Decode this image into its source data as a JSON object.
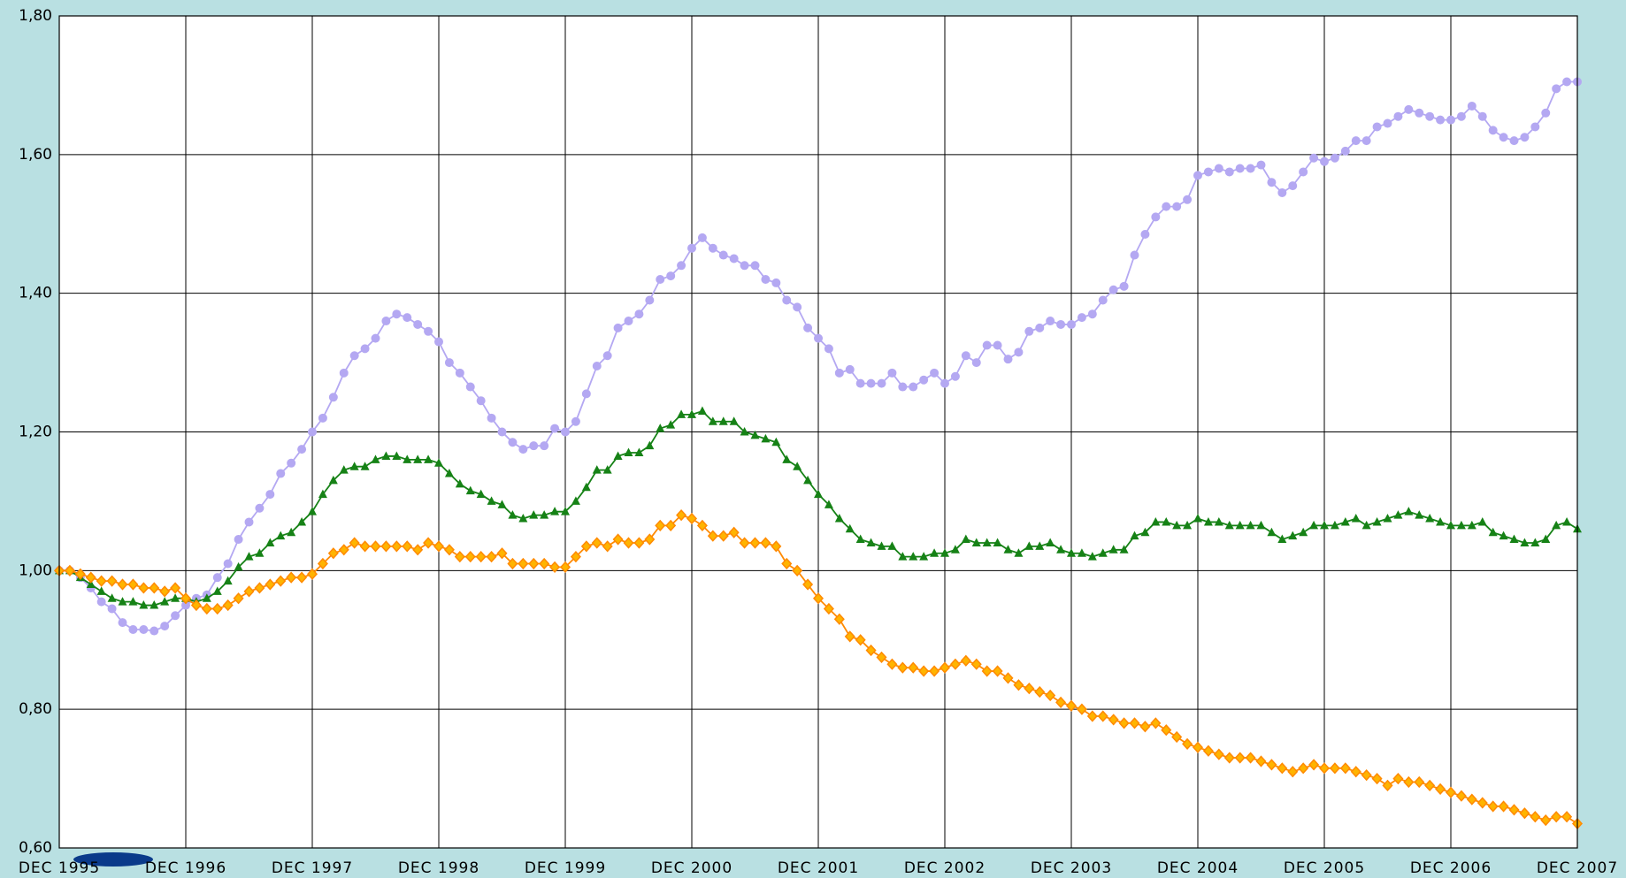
{
  "chart_data": {
    "type": "line",
    "categories": [
      "DEC 1995",
      null,
      null,
      null,
      null,
      null,
      null,
      null,
      null,
      null,
      null,
      null,
      "DEC 1996",
      null,
      null,
      null,
      null,
      null,
      null,
      null,
      null,
      null,
      null,
      null,
      "DEC 1997",
      null,
      null,
      null,
      null,
      null,
      null,
      null,
      null,
      null,
      null,
      null,
      "DEC 1998",
      null,
      null,
      null,
      null,
      null,
      null,
      null,
      null,
      null,
      null,
      null,
      "DEC 1999",
      null,
      null,
      null,
      null,
      null,
      null,
      null,
      null,
      null,
      null,
      null,
      "DEC 2000",
      null,
      null,
      null,
      null,
      null,
      null,
      null,
      null,
      null,
      null,
      null,
      "DEC 2001",
      null,
      null,
      null,
      null,
      null,
      null,
      null,
      null,
      null,
      null,
      null,
      "DEC 2002",
      null,
      null,
      null,
      null,
      null,
      null,
      null,
      null,
      null,
      null,
      null,
      "DEC 2003",
      null,
      null,
      null,
      null,
      null,
      null,
      null,
      null,
      null,
      null,
      null,
      "DEC 2004",
      null,
      null,
      null,
      null,
      null,
      null,
      null,
      null,
      null,
      null,
      null,
      "DEC 2005",
      null,
      null,
      null,
      null,
      null,
      null,
      null,
      null,
      null,
      null,
      null,
      "DEC 2006",
      null,
      null,
      null,
      null,
      null,
      null,
      null,
      null,
      null,
      null,
      null,
      "DEC 2007"
    ],
    "series": [
      {
        "color": "#b4a8f2",
        "marker": "circle",
        "values": [
          1.0,
          1.0,
          0.99,
          0.975,
          0.955,
          0.945,
          0.925,
          0.915,
          0.915,
          0.913,
          0.92,
          0.935,
          0.95,
          0.96,
          0.965,
          0.99,
          1.01,
          1.045,
          1.07,
          1.09,
          1.11,
          1.14,
          1.155,
          1.175,
          1.2,
          1.22,
          1.25,
          1.285,
          1.31,
          1.32,
          1.335,
          1.36,
          1.37,
          1.365,
          1.355,
          1.345,
          1.33,
          1.3,
          1.285,
          1.265,
          1.245,
          1.22,
          1.2,
          1.185,
          1.175,
          1.18,
          1.18,
          1.205,
          1.2,
          1.215,
          1.255,
          1.295,
          1.31,
          1.35,
          1.36,
          1.37,
          1.39,
          1.42,
          1.425,
          1.44,
          1.465,
          1.48,
          1.465,
          1.455,
          1.45,
          1.44,
          1.44,
          1.42,
          1.415,
          1.39,
          1.38,
          1.35,
          1.335,
          1.32,
          1.285,
          1.29,
          1.27,
          1.27,
          1.27,
          1.285,
          1.265,
          1.265,
          1.275,
          1.285,
          1.27,
          1.28,
          1.31,
          1.3,
          1.325,
          1.325,
          1.305,
          1.315,
          1.345,
          1.35,
          1.36,
          1.355,
          1.355,
          1.365,
          1.37,
          1.39,
          1.405,
          1.41,
          1.455,
          1.485,
          1.51,
          1.525,
          1.525,
          1.535,
          1.57,
          1.575,
          1.58,
          1.575,
          1.58,
          1.58,
          1.585,
          1.56,
          1.545,
          1.555,
          1.575,
          1.595,
          1.59,
          1.595,
          1.605,
          1.62,
          1.62,
          1.64,
          1.645,
          1.655,
          1.665,
          1.66,
          1.655,
          1.65,
          1.65,
          1.655,
          1.67,
          1.655,
          1.635,
          1.625,
          1.62,
          1.625,
          1.64,
          1.66,
          1.695,
          1.705,
          1.705
        ]
      },
      {
        "color": "#168216",
        "marker": "triangle",
        "values": [
          1.0,
          1.0,
          0.99,
          0.98,
          0.97,
          0.96,
          0.955,
          0.955,
          0.95,
          0.95,
          0.955,
          0.96,
          0.96,
          0.955,
          0.96,
          0.97,
          0.985,
          1.005,
          1.02,
          1.025,
          1.04,
          1.05,
          1.055,
          1.07,
          1.085,
          1.11,
          1.13,
          1.145,
          1.15,
          1.15,
          1.16,
          1.165,
          1.165,
          1.16,
          1.16,
          1.16,
          1.155,
          1.14,
          1.125,
          1.115,
          1.11,
          1.1,
          1.095,
          1.08,
          1.075,
          1.08,
          1.08,
          1.085,
          1.085,
          1.1,
          1.12,
          1.145,
          1.145,
          1.165,
          1.17,
          1.17,
          1.18,
          1.205,
          1.21,
          1.225,
          1.225,
          1.23,
          1.215,
          1.215,
          1.215,
          1.2,
          1.195,
          1.19,
          1.185,
          1.16,
          1.15,
          1.13,
          1.11,
          1.095,
          1.075,
          1.06,
          1.045,
          1.04,
          1.035,
          1.035,
          1.02,
          1.02,
          1.02,
          1.025,
          1.025,
          1.03,
          1.045,
          1.04,
          1.04,
          1.04,
          1.03,
          1.025,
          1.035,
          1.035,
          1.04,
          1.03,
          1.025,
          1.025,
          1.02,
          1.025,
          1.03,
          1.03,
          1.05,
          1.055,
          1.07,
          1.07,
          1.065,
          1.065,
          1.075,
          1.07,
          1.07,
          1.065,
          1.065,
          1.065,
          1.065,
          1.055,
          1.045,
          1.05,
          1.055,
          1.065,
          1.065,
          1.065,
          1.07,
          1.075,
          1.065,
          1.07,
          1.075,
          1.08,
          1.085,
          1.08,
          1.075,
          1.07,
          1.065,
          1.065,
          1.065,
          1.07,
          1.055,
          1.05,
          1.045,
          1.04,
          1.04,
          1.045,
          1.065,
          1.07,
          1.06
        ]
      },
      {
        "color": "#ff8a00",
        "marker": "diamond",
        "values": [
          1.0,
          1.0,
          0.995,
          0.99,
          0.985,
          0.985,
          0.98,
          0.98,
          0.975,
          0.975,
          0.97,
          0.975,
          0.96,
          0.95,
          0.945,
          0.945,
          0.95,
          0.96,
          0.97,
          0.975,
          0.98,
          0.985,
          0.99,
          0.99,
          0.995,
          1.01,
          1.025,
          1.03,
          1.04,
          1.035,
          1.035,
          1.035,
          1.035,
          1.035,
          1.03,
          1.04,
          1.035,
          1.03,
          1.02,
          1.02,
          1.02,
          1.02,
          1.025,
          1.01,
          1.01,
          1.01,
          1.01,
          1.005,
          1.005,
          1.02,
          1.035,
          1.04,
          1.035,
          1.045,
          1.04,
          1.04,
          1.045,
          1.065,
          1.065,
          1.08,
          1.075,
          1.065,
          1.05,
          1.05,
          1.055,
          1.04,
          1.04,
          1.04,
          1.035,
          1.01,
          1.0,
          0.98,
          0.96,
          0.945,
          0.93,
          0.905,
          0.9,
          0.885,
          0.875,
          0.865,
          0.86,
          0.86,
          0.855,
          0.855,
          0.86,
          0.865,
          0.87,
          0.865,
          0.855,
          0.855,
          0.845,
          0.835,
          0.83,
          0.825,
          0.82,
          0.81,
          0.805,
          0.8,
          0.79,
          0.79,
          0.785,
          0.78,
          0.78,
          0.775,
          0.78,
          0.77,
          0.76,
          0.75,
          0.745,
          0.74,
          0.735,
          0.73,
          0.73,
          0.73,
          0.725,
          0.72,
          0.715,
          0.71,
          0.715,
          0.72,
          0.715,
          0.715,
          0.715,
          0.71,
          0.705,
          0.7,
          0.69,
          0.7,
          0.695,
          0.695,
          0.69,
          0.685,
          0.68,
          0.675,
          0.67,
          0.665,
          0.66,
          0.66,
          0.655,
          0.65,
          0.645,
          0.64,
          0.645,
          0.645,
          0.635
        ]
      }
    ],
    "ylim": [
      0.6,
      1.8
    ],
    "yticks": [
      {
        "value": 0.6,
        "label": "0,60"
      },
      {
        "value": 0.8,
        "label": "0,80"
      },
      {
        "value": 1.0,
        "label": "1,00"
      },
      {
        "value": 1.2,
        "label": "1,20"
      },
      {
        "value": 1.4,
        "label": "1,40"
      },
      {
        "value": 1.6,
        "label": "1,60"
      },
      {
        "value": 1.8,
        "label": "1,80"
      }
    ],
    "grid": true
  }
}
